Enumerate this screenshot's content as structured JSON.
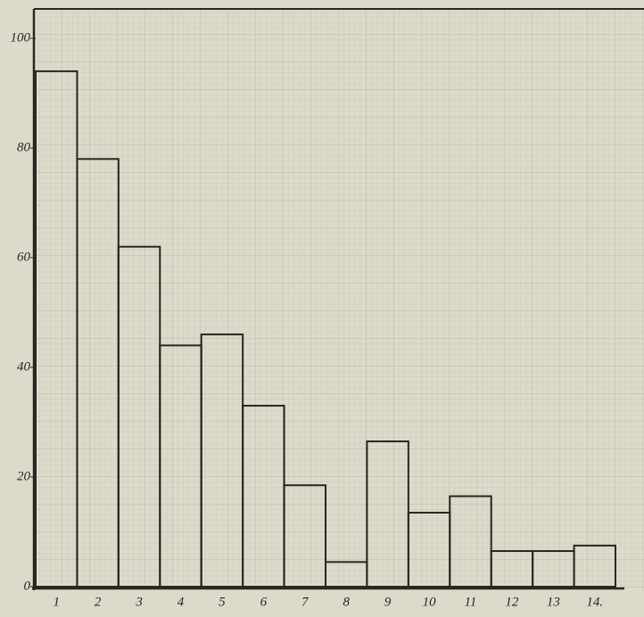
{
  "chart_data": {
    "type": "bar",
    "categories": [
      "1",
      "2",
      "3",
      "4",
      "5",
      "6",
      "7",
      "8",
      "9",
      "10",
      "11",
      "12",
      "13",
      "14."
    ],
    "values": [
      94,
      78,
      62,
      44,
      46,
      33,
      18.5,
      4.5,
      26.5,
      13.5,
      16.5,
      6.5,
      6.5,
      7.5
    ],
    "color": "#2a2620",
    "ylim": [
      0,
      100
    ],
    "yticks": [
      0,
      20,
      40,
      60,
      80,
      100
    ]
  }
}
